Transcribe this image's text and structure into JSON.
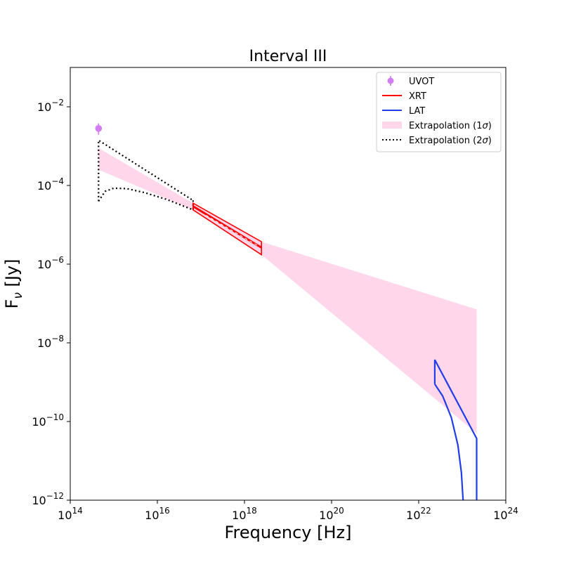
{
  "chart_data": {
    "type": "line",
    "title": "Interval III",
    "xlabel": "Frequency [Hz]",
    "ylabel_base": "F",
    "ylabel_sub": "ν",
    "ylabel_unit": " [Jy]",
    "xscale": "log",
    "yscale": "log",
    "xlim_log10": [
      14,
      24
    ],
    "ylim_log10": [
      -12,
      -1
    ],
    "x_ticks": [
      {
        "exp": 14,
        "base": "10",
        "sup": "14"
      },
      {
        "exp": 16,
        "base": "10",
        "sup": "16"
      },
      {
        "exp": 18,
        "base": "10",
        "sup": "18"
      },
      {
        "exp": 20,
        "base": "10",
        "sup": "20"
      },
      {
        "exp": 22,
        "base": "10",
        "sup": "22"
      },
      {
        "exp": 24,
        "base": "10",
        "sup": "24"
      }
    ],
    "y_ticks": [
      {
        "exp": -2,
        "base": "10",
        "sup": "−2"
      },
      {
        "exp": -4,
        "base": "10",
        "sup": "−4"
      },
      {
        "exp": -6,
        "base": "10",
        "sup": "−6"
      },
      {
        "exp": -8,
        "base": "10",
        "sup": "−8"
      },
      {
        "exp": -10,
        "base": "10",
        "sup": "−10"
      },
      {
        "exp": -12,
        "base": "10",
        "sup": "−12"
      }
    ],
    "colors": {
      "uvot": "#d17cf0",
      "xrt": "#ff0000",
      "lat": "#1f3de8",
      "band1": "#ffd6ea",
      "band2": "#000000"
    },
    "legend": [
      {
        "key": "uvot",
        "label": "UVOT",
        "sigma": ""
      },
      {
        "key": "xrt",
        "label": "XRT",
        "sigma": ""
      },
      {
        "key": "lat",
        "label": "LAT",
        "sigma": ""
      },
      {
        "key": "band1",
        "label": "Extrapolation (1",
        "sigma": "σ)"
      },
      {
        "key": "band2",
        "label": "Extrapolation (2",
        "sigma": "σ)"
      }
    ],
    "series": {
      "uvot": {
        "name": "UVOT",
        "x_log10": 14.65,
        "y_log10": -2.55,
        "yerr_up": -2.42,
        "yerr_low": -2.71
      },
      "xrt": {
        "name": "XRT",
        "x_log10": [
          16.82,
          18.39
        ],
        "upper_log10": [
          -4.45,
          -5.43
        ],
        "lower_log10": [
          -4.62,
          -5.76
        ],
        "mid_log10": [
          -4.53,
          -5.58
        ]
      },
      "lat": {
        "name": "LAT",
        "left_x_log10": 22.37,
        "right_x_log10": 23.33,
        "upper_log10": [
          -8.43,
          -10.43
        ],
        "lower_curve": [
          [
            22.37,
            -9.05
          ],
          [
            22.55,
            -9.35
          ],
          [
            22.75,
            -9.9
          ],
          [
            22.9,
            -10.6
          ],
          [
            22.98,
            -11.3
          ],
          [
            23.02,
            -12.0
          ]
        ]
      },
      "extrapolation_1sigma": {
        "name": "Extrapolation (1σ)",
        "x_log10": [
          14.65,
          16.82,
          18.39,
          23.33
        ],
        "upper_log10": [
          -3.05,
          -4.45,
          -5.43,
          -7.15
        ],
        "lower_log10": [
          -3.6,
          -4.62,
          -5.76,
          -10.3
        ]
      },
      "extrapolation_2sigma": {
        "name": "Extrapolation (2σ)",
        "upper": [
          [
            14.65,
            -2.85
          ],
          [
            16.82,
            -4.38
          ]
        ],
        "lower_curve": [
          [
            14.65,
            -4.4
          ],
          [
            14.8,
            -4.15
          ],
          [
            15.0,
            -4.07
          ],
          [
            15.3,
            -4.08
          ],
          [
            15.7,
            -4.18
          ],
          [
            16.2,
            -4.35
          ],
          [
            16.82,
            -4.62
          ]
        ]
      }
    }
  }
}
